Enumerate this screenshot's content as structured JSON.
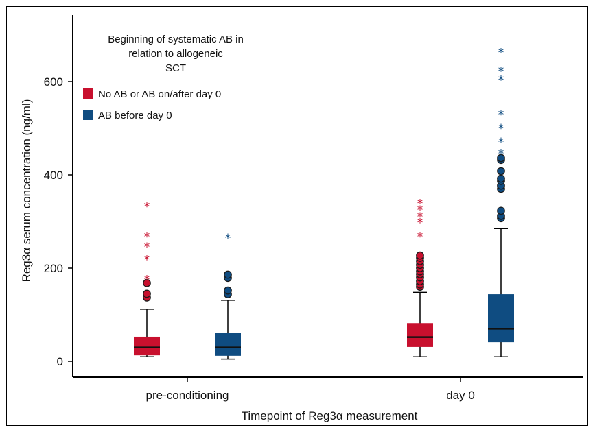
{
  "chart_data": {
    "type": "box",
    "ylabel": "Reg3α serum concentration (ng/ml)",
    "xlabel": "Timepoint of Reg3α measurement",
    "categories": [
      "pre-conditioning",
      "day 0"
    ],
    "yticks": [
      0,
      200,
      400,
      600
    ],
    "ylim": [
      -25,
      690
    ],
    "grid": false,
    "legend": {
      "title_lines": [
        "Beginning of systematic AB in",
        "relation to allogeneic",
        "SCT"
      ],
      "placement": "top-left",
      "entries": [
        {
          "label": "No AB or AB on/after day 0",
          "color": "#c8102e"
        },
        {
          "label": "AB before day 0",
          "color": "#0f4c81"
        }
      ]
    },
    "series": [
      {
        "name": "No AB or AB on/after day 0",
        "color": "#c8102e",
        "boxes": [
          {
            "category": "pre-conditioning",
            "whisker_low": 10,
            "q1": 13,
            "median": 30,
            "q3": 53,
            "whisker_high": 112,
            "outliers": [
              137,
              145,
              168
            ],
            "extremes": [
              183,
              226,
              253,
              275,
              340
            ]
          },
          {
            "category": "day 0",
            "whisker_low": 10,
            "q1": 31,
            "median": 52,
            "q3": 82,
            "whisker_high": 148,
            "outliers": [
              160,
              165,
              172,
              180,
              187,
              193,
              200,
              207,
              215,
              222,
              227
            ],
            "extremes": [
              275,
              305,
              318,
              332,
              346
            ]
          }
        ]
      },
      {
        "name": "AB before day 0",
        "color": "#0f4c81",
        "boxes": [
          {
            "category": "pre-conditioning",
            "whisker_low": 5,
            "q1": 12,
            "median": 30,
            "q3": 61,
            "whisker_high": 131,
            "outliers": [
              144,
              152,
              179,
              186
            ],
            "extremes": [
              272
            ]
          },
          {
            "category": "day 0",
            "whisker_low": 10,
            "q1": 41,
            "median": 70,
            "q3": 144,
            "whisker_high": 285,
            "outliers": [
              307,
              312,
              323,
              370,
              377,
              387,
              392,
              408,
              432,
              436
            ],
            "extremes": [
              453,
              478,
              507,
              537,
              611,
              630,
              670
            ]
          }
        ]
      }
    ]
  }
}
